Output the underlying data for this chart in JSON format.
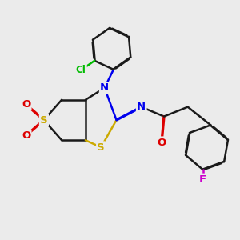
{
  "bg": "#ebebeb",
  "bond_color": "#1a1a1a",
  "N_color": "#0000ee",
  "S_color": "#ccaa00",
  "O_color": "#dd0000",
  "Cl_color": "#00bb00",
  "F_color": "#cc00cc",
  "lw": 1.8,
  "dbo": 0.013,
  "fs": 9.5,
  "figsize": [
    3.0,
    3.0
  ],
  "dpi": 100,
  "xlim": [
    0,
    10
  ],
  "ylim": [
    0,
    10
  ]
}
